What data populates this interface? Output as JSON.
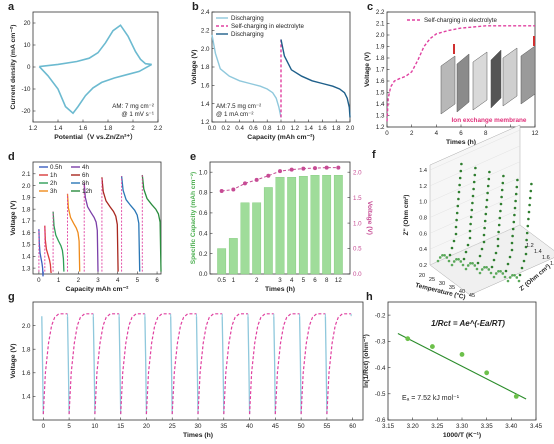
{
  "chart_data": [
    {
      "id": "a",
      "panel_label": "a",
      "type": "line",
      "xlabel": "Potential（V vs.Zn/Zn²⁺）",
      "ylabel": "Current density (mA cm⁻²)",
      "xlim": [
        1.2,
        2.2
      ],
      "ylim": [
        -25,
        25
      ],
      "xticks": [
        1.2,
        1.4,
        1.6,
        1.8,
        2.0,
        2.2
      ],
      "yticks": [
        -20,
        -10,
        0,
        10,
        20
      ],
      "annotations": [
        "AM: 7 mg cm⁻²",
        "@ 1 mV s⁻¹"
      ],
      "series": [
        {
          "color": "#6cbad0",
          "x": [
            1.25,
            1.4,
            1.55,
            1.65,
            1.72,
            1.78,
            1.84,
            1.9,
            1.96,
            2.02,
            2.06,
            2.1,
            2.15
          ],
          "y": [
            0.2,
            1.2,
            2.5,
            4,
            6.5,
            11,
            16.5,
            19,
            14,
            7,
            3.5,
            1.5,
            1.2
          ]
        },
        {
          "color": "#6cbad0",
          "x": [
            2.15,
            2.05,
            1.95,
            1.85,
            1.75,
            1.68,
            1.62,
            1.56,
            1.52,
            1.46,
            1.4,
            1.32,
            1.25
          ],
          "y": [
            1.2,
            -2,
            -3.5,
            -5,
            -7,
            -9.5,
            -13,
            -18,
            -21,
            -18,
            -10,
            -4,
            0.2
          ]
        }
      ]
    },
    {
      "id": "b",
      "panel_label": "b",
      "type": "line",
      "xlabel": "Capacity (mAh cm⁻²)",
      "ylabel": "Voltage (V)",
      "xlim": [
        0,
        2.0
      ],
      "ylim": [
        1.2,
        2.4
      ],
      "xticks": [
        0.0,
        0.2,
        0.4,
        0.6,
        0.8,
        1.0,
        1.2,
        1.4,
        1.6,
        1.8,
        2.0
      ],
      "yticks": [
        1.2,
        1.4,
        1.6,
        1.8,
        2.0,
        2.2,
        2.4
      ],
      "annotations": [
        "AM:7.5 mg cm⁻²",
        "@ 1 mA cm⁻²"
      ],
      "legend": [
        "Discharging",
        "Self-charging in electrolyte",
        "Discharging"
      ],
      "series": [
        {
          "name": "Discharging",
          "color": "#8fc8dc",
          "x": [
            0,
            0.05,
            0.12,
            0.25,
            0.4,
            0.55,
            0.7,
            0.8,
            0.88,
            0.93,
            0.97,
            1.0
          ],
          "y": [
            2.15,
            1.95,
            1.78,
            1.7,
            1.65,
            1.62,
            1.59,
            1.56,
            1.52,
            1.46,
            1.36,
            1.25
          ]
        },
        {
          "name": "Self-charging in electrolyte",
          "color": "#e040a0",
          "x": [
            1.0,
            1.0
          ],
          "y": [
            1.25,
            2.1
          ]
        },
        {
          "name": "Discharging",
          "color": "#1e5f8a",
          "x": [
            1.0,
            1.05,
            1.15,
            1.3,
            1.45,
            1.6,
            1.75,
            1.85,
            1.92,
            1.96,
            1.99,
            2.0
          ],
          "y": [
            2.1,
            1.92,
            1.77,
            1.7,
            1.65,
            1.62,
            1.59,
            1.56,
            1.52,
            1.46,
            1.36,
            1.25
          ]
        }
      ]
    },
    {
      "id": "c",
      "panel_label": "c",
      "type": "line",
      "xlabel": "Times (h)",
      "ylabel": "Voltage (V)",
      "xlim": [
        0,
        12
      ],
      "ylim": [
        1.2,
        2.2
      ],
      "xticks": [
        0,
        2,
        4,
        6,
        8,
        10,
        12
      ],
      "yticks": [
        1.2,
        1.3,
        1.4,
        1.5,
        1.6,
        1.7,
        1.8,
        1.9,
        2.0,
        2.1,
        2.2
      ],
      "legend": [
        "Self-charging in electrolyte"
      ],
      "annotations": [
        "Ion exchange membrane"
      ],
      "series": [
        {
          "name": "Self-charging in electrolyte",
          "color": "#e040a0",
          "x": [
            0,
            0.1,
            0.3,
            0.6,
            1.0,
            1.5,
            2.0,
            2.5,
            3.0,
            3.5,
            4.0,
            5.0,
            6.0,
            7.0,
            8.0,
            10.0,
            12.0
          ],
          "y": [
            1.25,
            1.45,
            1.55,
            1.6,
            1.62,
            1.64,
            1.68,
            1.78,
            1.9,
            1.97,
            2.01,
            2.04,
            2.06,
            2.07,
            2.08,
            2.08,
            2.08
          ]
        }
      ]
    },
    {
      "id": "d",
      "panel_label": "d",
      "type": "line",
      "xlabel": "Capacity mAh cm⁻²",
      "ylabel": "Voltage (V)",
      "xlim": [
        -0.3,
        6.2
      ],
      "ylim": [
        1.25,
        2.2
      ],
      "xticks": [
        0,
        1,
        2,
        3,
        4,
        5,
        6
      ],
      "yticks": [
        1.3,
        1.4,
        1.5,
        1.6,
        1.7,
        1.8,
        1.9,
        2.0,
        2.1
      ],
      "legend": [
        "0.5h",
        "1h",
        "2h",
        "3h",
        "4h",
        "6h",
        "8h",
        "12h"
      ],
      "series": [
        {
          "name": "0.5h",
          "color": "#3b5fc0",
          "start": 0.0,
          "top": 1.63,
          "width": 0.22
        },
        {
          "name": "1h",
          "color": "#d93a3a",
          "start": 0.3,
          "top": 1.66,
          "width": 0.33
        },
        {
          "name": "2h",
          "color": "#2e9e57",
          "start": 0.72,
          "top": 1.78,
          "width": 0.55
        },
        {
          "name": "3h",
          "color": "#ef8b1c",
          "start": 1.45,
          "top": 1.93,
          "width": 0.62
        },
        {
          "name": "4h",
          "color": "#7b3fa8",
          "start": 2.3,
          "top": 2.02,
          "width": 0.7
        },
        {
          "name": "6h",
          "color": "#a8271f",
          "start": 3.2,
          "top": 2.07,
          "width": 0.82
        },
        {
          "name": "8h",
          "color": "#2a77b6",
          "start": 4.2,
          "top": 2.08,
          "width": 0.92
        },
        {
          "name": "12h",
          "color": "#2a8c3e",
          "start": 5.25,
          "top": 2.09,
          "width": 0.95
        }
      ]
    },
    {
      "id": "e",
      "panel_label": "e",
      "type": "bar",
      "xlabel": "Times (h)",
      "ylabel": "Specific Capacity (mAh cm⁻²)",
      "ylabel_right": "Voltage (V)",
      "categories": [
        "0.5",
        "1",
        "",
        "2",
        "",
        "3",
        "4",
        "5",
        "6",
        "8",
        "12"
      ],
      "ylim": [
        0,
        1.1
      ],
      "ylim_right": [
        0,
        2.2
      ],
      "yticks": [
        0.0,
        0.2,
        0.4,
        0.6,
        0.8,
        1.0
      ],
      "yticks_right": [
        0.0,
        0.5,
        1.0,
        1.5,
        2.0
      ],
      "bar_color": "#9fdc9a",
      "line_color": "#c64b94",
      "values": [
        0.25,
        0.35,
        0.7,
        0.7,
        0.85,
        0.95,
        0.95,
        0.96,
        0.97,
        0.97,
        0.97
      ],
      "voltage": [
        1.63,
        1.66,
        1.78,
        1.85,
        1.93,
        2.02,
        2.05,
        2.07,
        2.08,
        2.09,
        2.09
      ]
    },
    {
      "id": "f",
      "panel_label": "f",
      "type": "scatter",
      "xlabel": "Temperature (°C)",
      "ylabel": "Z' (Ohm cm²)",
      "zlabel": "Z'' (Ohm cm²)",
      "temperatures": [
        "20",
        "25",
        "30",
        "35",
        "40",
        "45"
      ],
      "yticks": [
        0.2,
        0.4,
        0.6,
        0.8,
        1.0,
        1.2,
        1.4
      ],
      "xprime_ticks": [
        1.2,
        1.4,
        1.6,
        1.8,
        2.0
      ],
      "color": "#2e7d2e"
    },
    {
      "id": "g",
      "panel_label": "g",
      "type": "line",
      "xlabel": "Times (h)",
      "ylabel": "Voltage (V)",
      "xlim": [
        -2,
        62
      ],
      "ylim": [
        1.2,
        2.2
      ],
      "xticks": [
        0,
        5,
        10,
        15,
        20,
        25,
        30,
        35,
        40,
        45,
        50,
        55,
        60
      ],
      "yticks": [
        1.4,
        1.6,
        1.8,
        2.0
      ],
      "cycles": 12,
      "period": 5,
      "colors": {
        "discharge": "#8fc8dc",
        "charge": "#e040a0"
      }
    },
    {
      "id": "h",
      "panel_label": "h",
      "type": "scatter",
      "xlabel": "1000/T (K⁻¹)",
      "ylabel": "ln(1/Rct) (ohm⁻¹)",
      "xlim": [
        3.15,
        3.45
      ],
      "ylim": [
        -0.6,
        -0.15
      ],
      "xticks": [
        3.15,
        3.2,
        3.25,
        3.3,
        3.35,
        3.4,
        3.45
      ],
      "yticks": [
        -0.6,
        -0.5,
        -0.4,
        -0.3,
        -0.2
      ],
      "equation": "1/Rct = Ae^(-Ea/RT)",
      "annotation": "Eₐ = 7.52 kJ mol⁻¹",
      "x": [
        3.19,
        3.24,
        3.3,
        3.35,
        3.41
      ],
      "y": [
        -0.29,
        -0.32,
        -0.35,
        -0.42,
        -0.51
      ],
      "fit": {
        "x": [
          3.17,
          3.43
        ],
        "y": [
          -0.27,
          -0.52
        ]
      },
      "color": "#6cc04a"
    }
  ]
}
